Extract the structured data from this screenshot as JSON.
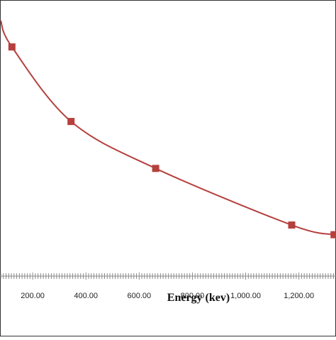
{
  "chart_data": {
    "type": "line",
    "title": "",
    "xlabel": "Energy (kev)",
    "ylabel": "",
    "xlim": [
      0,
      1350
    ],
    "ylim": [
      0,
      1
    ],
    "x_ticks": [
      {
        "value": 200,
        "label": "200.00"
      },
      {
        "value": 400,
        "label": "400.00"
      },
      {
        "value": 600,
        "label": "600.00"
      },
      {
        "value": 800,
        "label": "800.00"
      },
      {
        "value": 1000,
        "label": "1,000.00"
      },
      {
        "value": 1200,
        "label": "1,200.00"
      }
    ],
    "grid": false,
    "legend": "none",
    "series": [
      {
        "marker": "square",
        "color": "#b5403d",
        "x": [
          122,
          344,
          662,
          1173,
          1332
        ],
        "y": [
          0.83,
          0.56,
          0.39,
          0.185,
          0.15
        ]
      }
    ]
  }
}
